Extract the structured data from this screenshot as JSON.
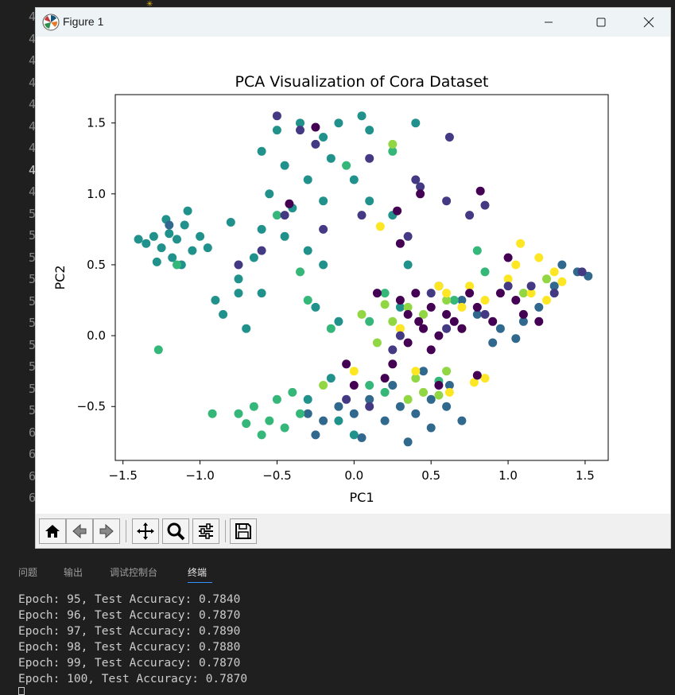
{
  "editor": {
    "line_numbers": [
      "4",
      "4",
      "4",
      "4",
      "4",
      "4",
      "4",
      "4",
      "4",
      "5",
      "5",
      "5",
      "5",
      "5",
      "5",
      "5",
      "5",
      "5",
      "5",
      "6",
      "6",
      "6",
      "6"
    ]
  },
  "window": {
    "title": "Figure 1",
    "controls": [
      "minimize-icon",
      "maximize-icon",
      "close-icon"
    ]
  },
  "toolbar": {
    "buttons": [
      "home-icon",
      "back-icon",
      "forward-icon",
      "pan-icon",
      "zoom-icon",
      "configure-subplots-icon",
      "save-icon"
    ]
  },
  "panel": {
    "tabs": [
      "问题",
      "输出",
      "调试控制台",
      "终端"
    ],
    "active_tab": "终端",
    "terminal_lines": [
      "Epoch: 95, Test Accuracy: 0.7840",
      "Epoch: 96, Test Accuracy: 0.7870",
      "Epoch: 97, Test Accuracy: 0.7890",
      "Epoch: 98, Test Accuracy: 0.7880",
      "Epoch: 99, Test Accuracy: 0.7870",
      "Epoch: 100, Test Accuracy: 0.7870"
    ]
  },
  "colors": {
    "class_colors": [
      "#440154",
      "#443983",
      "#31688e",
      "#21918c",
      "#35b779",
      "#90d743",
      "#fde725"
    ]
  },
  "chart_data": {
    "type": "scatter",
    "title": "PCA Visualization of Cora Dataset",
    "xlabel": "PC1",
    "ylabel": "PC2",
    "xlim": [
      -1.55,
      1.65
    ],
    "ylim": [
      -0.88,
      1.7
    ],
    "xticks": [
      -1.5,
      -1.0,
      -0.5,
      0.0,
      0.5,
      1.0,
      1.5
    ],
    "xtick_labels": [
      "−1.5",
      "−1.0",
      "−0.5",
      "0.0",
      "0.5",
      "1.0",
      "1.5"
    ],
    "yticks": [
      -0.5,
      0.0,
      0.5,
      1.0,
      1.5
    ],
    "ytick_labels": [
      "−0.5",
      "0.0",
      "0.5",
      "1.0",
      "1.5"
    ],
    "grid": false,
    "series": [
      {
        "color": "#21918c",
        "values": [
          [
            -1.2,
            0.72
          ],
          [
            -1.15,
            0.68
          ],
          [
            -1.25,
            0.62
          ],
          [
            -1.1,
            0.78
          ],
          [
            -1.3,
            0.7
          ],
          [
            -1.05,
            0.6
          ],
          [
            -1.18,
            0.55
          ],
          [
            -1.35,
            0.65
          ],
          [
            -1.22,
            0.82
          ],
          [
            -1.0,
            0.7
          ],
          [
            -0.95,
            0.62
          ],
          [
            -1.12,
            0.5
          ],
          [
            -1.28,
            0.52
          ],
          [
            -1.4,
            0.68
          ],
          [
            -1.08,
            0.88
          ],
          [
            -0.6,
            1.3
          ],
          [
            -0.5,
            1.45
          ],
          [
            -0.35,
            1.5
          ],
          [
            -0.2,
            1.4
          ],
          [
            -0.1,
            1.5
          ],
          [
            0.05,
            1.55
          ],
          [
            0.1,
            1.45
          ],
          [
            -0.45,
            1.2
          ],
          [
            -0.3,
            1.1
          ],
          [
            -0.15,
            1.25
          ],
          [
            -0.55,
            1.0
          ],
          [
            -0.4,
            0.9
          ],
          [
            -0.2,
            0.95
          ],
          [
            0.0,
            1.1
          ],
          [
            0.1,
            0.95
          ],
          [
            0.25,
            0.85
          ],
          [
            -0.6,
            0.75
          ],
          [
            -0.45,
            0.7
          ],
          [
            -0.3,
            0.6
          ],
          [
            -0.2,
            0.5
          ],
          [
            -0.65,
            0.55
          ],
          [
            -0.8,
            0.8
          ],
          [
            -0.75,
            0.3
          ],
          [
            -0.85,
            0.15
          ],
          [
            -0.9,
            0.25
          ],
          [
            -0.7,
            0.05
          ],
          [
            -0.75,
            0.4
          ],
          [
            -0.6,
            0.3
          ],
          [
            -0.25,
            0.2
          ],
          [
            -0.1,
            0.1
          ],
          [
            0.3,
            0.2
          ],
          [
            0.35,
            0.5
          ],
          [
            0.4,
            1.5
          ],
          [
            -0.1,
            -0.6
          ],
          [
            0.0,
            -0.7
          ],
          [
            -0.3,
            -0.45
          ],
          [
            -0.15,
            -0.3
          ]
        ]
      },
      {
        "color": "#31688e",
        "values": [
          [
            -0.3,
            -0.55
          ],
          [
            -0.2,
            -0.6
          ],
          [
            -0.1,
            -0.5
          ],
          [
            0.0,
            -0.55
          ],
          [
            0.1,
            -0.45
          ],
          [
            0.2,
            -0.6
          ],
          [
            0.3,
            -0.5
          ],
          [
            0.4,
            -0.55
          ],
          [
            0.5,
            -0.45
          ],
          [
            0.6,
            -0.5
          ],
          [
            0.7,
            -0.6
          ],
          [
            -0.25,
            -0.7
          ],
          [
            0.05,
            -0.72
          ],
          [
            0.35,
            -0.75
          ],
          [
            0.5,
            -0.65
          ],
          [
            0.62,
            -0.35
          ],
          [
            0.45,
            -0.25
          ],
          [
            0.25,
            -0.35
          ],
          [
            0.8,
            0.15
          ],
          [
            0.95,
            0.05
          ],
          [
            1.1,
            0.1
          ],
          [
            1.2,
            0.2
          ],
          [
            1.3,
            0.35
          ],
          [
            1.35,
            0.5
          ],
          [
            1.45,
            0.45
          ],
          [
            1.52,
            0.42
          ],
          [
            0.7,
            0.25
          ],
          [
            0.55,
            0.35
          ],
          [
            0.9,
            -0.05
          ],
          [
            1.05,
            -0.02
          ],
          [
            -1.2,
            0.78
          ]
        ]
      },
      {
        "color": "#35b779",
        "values": [
          [
            -0.75,
            -0.55
          ],
          [
            -0.7,
            -0.62
          ],
          [
            -0.65,
            -0.5
          ],
          [
            -0.6,
            -0.7
          ],
          [
            -0.55,
            -0.6
          ],
          [
            -0.5,
            -0.45
          ],
          [
            -0.45,
            -0.65
          ],
          [
            -0.4,
            -0.4
          ],
          [
            -0.35,
            -0.55
          ],
          [
            -0.92,
            -0.55
          ],
          [
            -1.27,
            -0.1
          ],
          [
            -0.3,
            0.25
          ],
          [
            -0.15,
            0.05
          ],
          [
            0.1,
            0.1
          ],
          [
            0.2,
            0.3
          ],
          [
            -0.35,
            0.45
          ],
          [
            0.65,
            0.25
          ],
          [
            -0.05,
            1.2
          ],
          [
            0.25,
            1.3
          ],
          [
            0.1,
            -0.35
          ],
          [
            0.2,
            -0.4
          ],
          [
            0.55,
            -0.32
          ],
          [
            -1.15,
            0.5
          ],
          [
            -0.5,
            0.85
          ],
          [
            0.8,
            0.6
          ],
          [
            0.85,
            0.45
          ]
        ]
      },
      {
        "color": "#90d743",
        "values": [
          [
            0.25,
            0.1
          ],
          [
            0.3,
            0.05
          ],
          [
            0.35,
            0.2
          ],
          [
            0.45,
            0.15
          ],
          [
            0.15,
            -0.05
          ],
          [
            0.4,
            -0.3
          ],
          [
            0.45,
            -0.4
          ],
          [
            0.35,
            -0.45
          ],
          [
            0.6,
            -0.25
          ],
          [
            0.55,
            -0.42
          ],
          [
            0.05,
            0.15
          ],
          [
            0.2,
            0.22
          ],
          [
            0.6,
            0.25
          ],
          [
            0.7,
            0.05
          ],
          [
            1.1,
            0.3
          ],
          [
            1.25,
            0.4
          ],
          [
            0.25,
            1.35
          ],
          [
            -0.2,
            -0.35
          ]
        ]
      },
      {
        "color": "#fde725",
        "values": [
          [
            0.55,
            0.35
          ],
          [
            0.6,
            0.3
          ],
          [
            0.7,
            0.2
          ],
          [
            0.75,
            0.35
          ],
          [
            0.85,
            0.25
          ],
          [
            1.0,
            0.4
          ],
          [
            1.05,
            0.5
          ],
          [
            1.15,
            0.3
          ],
          [
            1.25,
            0.25
          ],
          [
            1.3,
            0.45
          ],
          [
            1.35,
            0.38
          ],
          [
            1.08,
            0.65
          ],
          [
            1.2,
            0.55
          ],
          [
            0.3,
            0.05
          ],
          [
            0.4,
            -0.25
          ],
          [
            0.62,
            -0.4
          ],
          [
            0.78,
            -0.33
          ],
          [
            0.85,
            -0.3
          ],
          [
            -0.0,
            -0.25
          ],
          [
            0.17,
            0.77
          ]
        ]
      },
      {
        "color": "#443983",
        "values": [
          [
            -0.5,
            1.55
          ],
          [
            -0.35,
            1.45
          ],
          [
            -0.25,
            1.35
          ],
          [
            0.1,
            1.25
          ],
          [
            0.4,
            1.1
          ],
          [
            0.6,
            0.95
          ],
          [
            0.85,
            0.92
          ],
          [
            0.62,
            1.4
          ],
          [
            0.43,
            1.05
          ],
          [
            -0.45,
            0.85
          ],
          [
            -0.2,
            0.75
          ],
          [
            0.05,
            0.85
          ],
          [
            0.35,
            0.7
          ],
          [
            0.75,
            0.85
          ],
          [
            1.0,
            0.35
          ],
          [
            1.15,
            0.35
          ],
          [
            1.3,
            0.3
          ],
          [
            1.48,
            0.45
          ],
          [
            0.5,
            0.3
          ],
          [
            0.3,
            0.0
          ],
          [
            0.6,
            0.05
          ],
          [
            0.85,
            0.15
          ],
          [
            0.25,
            -0.1
          ],
          [
            -0.05,
            -0.45
          ],
          [
            0.1,
            -0.5
          ],
          [
            -0.6,
            0.6
          ],
          [
            -0.75,
            0.5
          ]
        ]
      },
      {
        "color": "#440154",
        "values": [
          [
            0.3,
            0.25
          ],
          [
            0.35,
            0.15
          ],
          [
            0.4,
            0.3
          ],
          [
            0.45,
            0.05
          ],
          [
            0.5,
            0.2
          ],
          [
            0.55,
            0.0
          ],
          [
            0.6,
            0.15
          ],
          [
            0.65,
            0.1
          ],
          [
            0.7,
            0.05
          ],
          [
            0.75,
            0.3
          ],
          [
            0.8,
            0.2
          ],
          [
            0.9,
            0.1
          ],
          [
            0.95,
            0.3
          ],
          [
            1.05,
            0.25
          ],
          [
            1.1,
            0.15
          ],
          [
            1.2,
            0.1
          ],
          [
            0.25,
            -0.2
          ],
          [
            0.35,
            -0.05
          ],
          [
            0.42,
            0.1
          ],
          [
            0.5,
            -0.1
          ],
          [
            0.15,
            0.3
          ],
          [
            0.0,
            -0.35
          ],
          [
            -0.05,
            -0.2
          ],
          [
            0.2,
            -0.3
          ],
          [
            0.55,
            -0.35
          ],
          [
            0.8,
            -0.28
          ],
          [
            0.3,
            0.65
          ],
          [
            0.28,
            0.88
          ],
          [
            0.43,
            1.0
          ],
          [
            -0.42,
            0.93
          ],
          [
            -0.25,
            1.47
          ],
          [
            0.82,
            1.02
          ],
          [
            1.0,
            0.55
          ]
        ]
      }
    ]
  }
}
